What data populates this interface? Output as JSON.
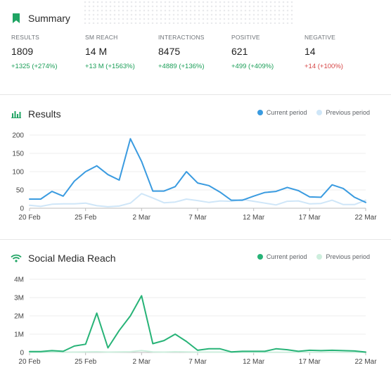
{
  "summary": {
    "title": "Summary",
    "metrics": [
      {
        "label": "RESULTS",
        "value": "1809",
        "change": "+1325 (+274%)",
        "trend": "up"
      },
      {
        "label": "SM REACH",
        "value": "14 M",
        "change": "+13 M (+1563%)",
        "trend": "up"
      },
      {
        "label": "INTERACTIONS",
        "value": "8475",
        "change": "+4889 (+136%)",
        "trend": "up"
      },
      {
        "label": "POSITIVE",
        "value": "621",
        "change": "+499 (+409%)",
        "trend": "up"
      },
      {
        "label": "NEGATIVE",
        "value": "14",
        "change": "+14 (+100%)",
        "trend": "down"
      }
    ]
  },
  "results": {
    "title": "Results",
    "legend": {
      "current": "Current period",
      "previous": "Previous period"
    }
  },
  "reach": {
    "title": "Social Media Reach",
    "legend": {
      "current": "Current period",
      "previous": "Previous period"
    }
  },
  "colors": {
    "results_current": "#3a9be0",
    "results_previous": "#cfe6f8",
    "reach_current": "#27b377",
    "reach_previous": "#cdeedd",
    "bookmark": "#1fa463",
    "grid": "#ececec",
    "axis": "#bdbdbd",
    "positive_change": "#1a9e57",
    "negative_change": "#d64545"
  },
  "icons": {
    "summary": "bookmark-icon",
    "results": "bar-chart-icon",
    "reach": "wifi-icon"
  },
  "chart_data": [
    {
      "type": "line",
      "title": "Results",
      "x_tick_labels": [
        "20 Feb",
        "25 Feb",
        "2 Mar",
        "7 Mar",
        "12 Mar",
        "17 Mar",
        "22 Mar"
      ],
      "x_tick_index": [
        0,
        5,
        10,
        15,
        20,
        25,
        30
      ],
      "y_ticks": [
        "0",
        "50",
        "100",
        "150",
        "200"
      ],
      "ylim": [
        0,
        200
      ],
      "grid": true,
      "legend_position": "top-right",
      "series": [
        {
          "name": "Current period",
          "values": [
            25,
            25,
            46,
            33,
            74,
            100,
            116,
            92,
            77,
            190,
            128,
            47,
            47,
            59,
            100,
            69,
            62,
            44,
            22,
            22,
            33,
            43,
            46,
            57,
            48,
            31,
            30,
            64,
            54,
            30,
            16
          ]
        },
        {
          "name": "Previous period",
          "values": [
            8,
            5,
            11,
            12,
            12,
            14,
            7,
            4,
            6,
            14,
            40,
            28,
            15,
            17,
            25,
            21,
            16,
            20,
            19,
            24,
            19,
            14,
            9,
            19,
            20,
            12,
            13,
            22,
            10,
            10,
            22
          ]
        }
      ]
    },
    {
      "type": "line",
      "title": "Social Media Reach",
      "x_tick_labels": [
        "20 Feb",
        "25 Feb",
        "2 Mar",
        "7 Mar",
        "12 Mar",
        "17 Mar",
        "22 Mar"
      ],
      "x_tick_index": [
        0,
        5,
        10,
        15,
        20,
        25,
        30
      ],
      "y_ticks": [
        "0",
        "1M",
        "2M",
        "3M",
        "4M"
      ],
      "ylim": [
        0,
        4000000
      ],
      "grid": true,
      "legend_position": "top-right",
      "series": [
        {
          "name": "Current period",
          "values": [
            50000,
            50000,
            100000,
            60000,
            350000,
            450000,
            2150000,
            250000,
            1200000,
            2000000,
            3100000,
            480000,
            650000,
            1000000,
            600000,
            120000,
            200000,
            200000,
            30000,
            60000,
            60000,
            60000,
            200000,
            150000,
            60000,
            120000,
            100000,
            120000,
            100000,
            80000,
            20000
          ]
        },
        {
          "name": "Previous period",
          "values": [
            10000,
            10000,
            20000,
            15000,
            20000,
            30000,
            40000,
            20000,
            30000,
            40000,
            100000,
            30000,
            20000,
            40000,
            30000,
            20000,
            20000,
            20000,
            10000,
            10000,
            20000,
            10000,
            10000,
            10000,
            20000,
            10000,
            10000,
            20000,
            10000,
            10000,
            10000
          ]
        }
      ]
    }
  ]
}
